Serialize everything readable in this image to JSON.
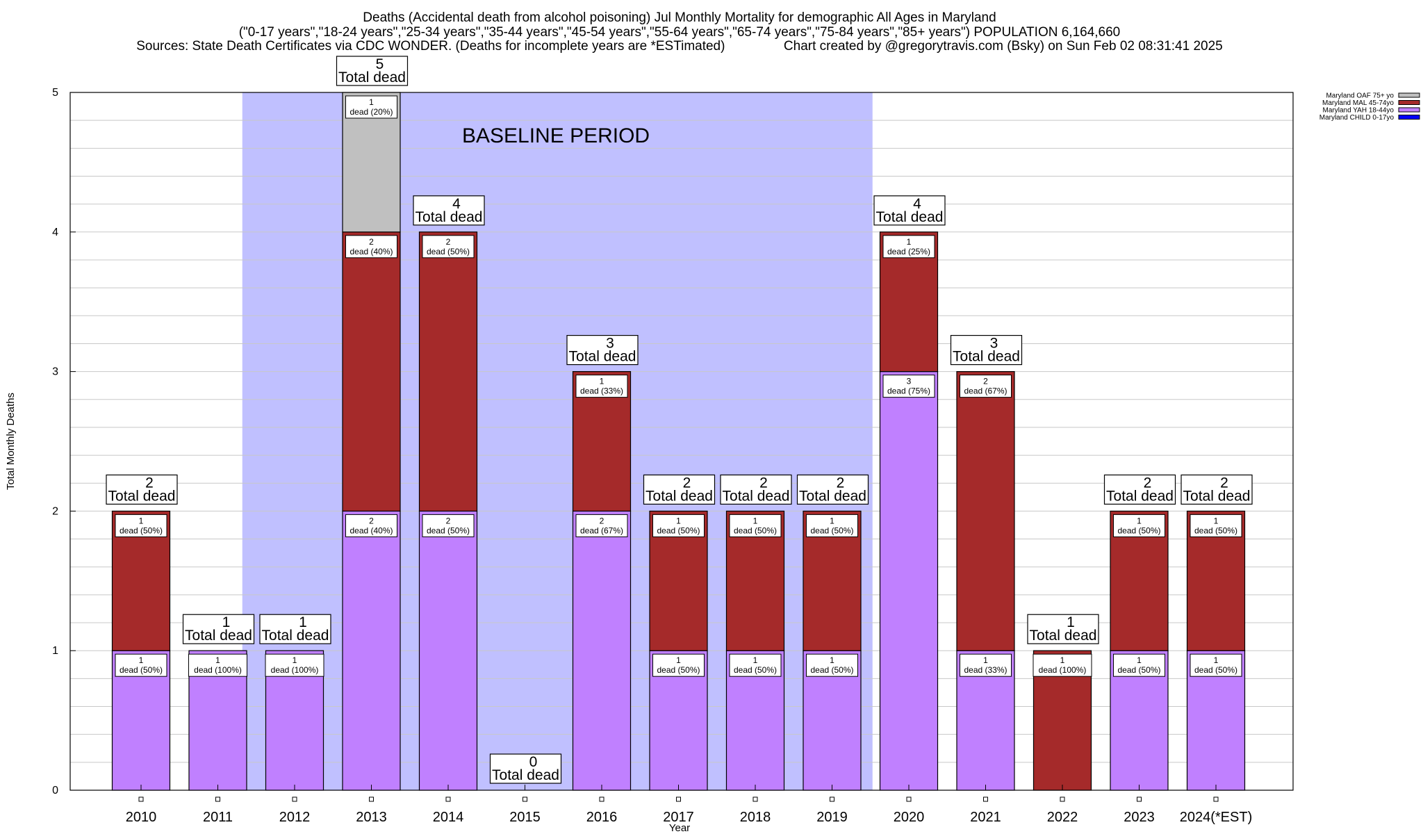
{
  "chart_data": {
    "type": "bar",
    "stacked": true,
    "title_lines": [
      "Deaths (Accidental death from alcohol poisoning) Jul Monthly Mortality for demographic All Ages in Maryland",
      "(\"0-17 years\",\"18-24 years\",\"25-34 years\",\"35-44 years\",\"45-54 years\",\"55-64 years\",\"65-74 years\",\"75-84 years\",\"85+ years\") POPULATION 6,164,660",
      "Sources: State Death Certificates via CDC WONDER. (Deaths for incomplete years are *ESTimated)                Chart created by @gregorytravis.com (Bsky) on Sun Feb 02 08:31:41 2025"
    ],
    "xlabel": "Year",
    "ylabel": "Total Monthly Deaths",
    "ylim": [
      0,
      5
    ],
    "yticks": [
      0,
      1,
      2,
      3,
      4,
      5
    ],
    "minor_grid_step": 0.2,
    "grid": true,
    "legend_position": "top-right",
    "categories": [
      "2010",
      "2011",
      "2012",
      "2013",
      "2014",
      "2015",
      "2016",
      "2017",
      "2018",
      "2019",
      "2020",
      "2021",
      "2022",
      "2023",
      "2024(*EST)"
    ],
    "series": [
      {
        "name": "Maryland CHILD 0-17yo",
        "color": "#0000ff",
        "values": [
          0,
          0,
          0,
          0,
          0,
          0,
          0,
          0,
          0,
          0,
          0,
          0,
          0,
          0,
          0
        ]
      },
      {
        "name": "Maryland YAH 18-44yo",
        "color": "#c080ff",
        "values": [
          1,
          1,
          1,
          2,
          2,
          0,
          2,
          1,
          1,
          1,
          3,
          1,
          0,
          1,
          1
        ]
      },
      {
        "name": "Maryland MAL 45-74yo",
        "color": "#a52a2a",
        "values": [
          1,
          0,
          0,
          2,
          2,
          0,
          1,
          1,
          1,
          1,
          1,
          2,
          1,
          1,
          1
        ]
      },
      {
        "name": "Maryland OAF 75+ yo",
        "color": "#c0c0c0",
        "values": [
          0,
          0,
          0,
          1,
          0,
          0,
          0,
          0,
          0,
          0,
          0,
          0,
          0,
          0,
          0
        ]
      }
    ],
    "legend_order": [
      "Maryland OAF 75+ yo",
      "Maryland MAL 45-74yo",
      "Maryland YAH 18-44yo",
      "Maryland CHILD 0-17yo"
    ],
    "totals": [
      2,
      1,
      1,
      5,
      4,
      0,
      3,
      2,
      2,
      2,
      4,
      3,
      1,
      2,
      2
    ],
    "total_label_suffix": "Total dead",
    "segment_labels": [
      [
        {
          "series": "Maryland YAH 18-44yo",
          "text": [
            "1",
            "dead (50%)"
          ]
        },
        {
          "series": "Maryland MAL 45-74yo",
          "text": [
            "1",
            "dead (50%)"
          ]
        }
      ],
      [
        {
          "series": "Maryland YAH 18-44yo",
          "text": [
            "1",
            "dead (100%)"
          ]
        }
      ],
      [
        {
          "series": "Maryland YAH 18-44yo",
          "text": [
            "1",
            "dead (100%)"
          ]
        }
      ],
      [
        {
          "series": "Maryland YAH 18-44yo",
          "text": [
            "2",
            "dead (40%)"
          ]
        },
        {
          "series": "Maryland MAL 45-74yo",
          "text": [
            "2",
            "dead (40%)"
          ]
        },
        {
          "series": "Maryland OAF 75+ yo",
          "text": [
            "1",
            "dead (20%)"
          ]
        }
      ],
      [
        {
          "series": "Maryland YAH 18-44yo",
          "text": [
            "2",
            "dead (50%)"
          ]
        },
        {
          "series": "Maryland MAL 45-74yo",
          "text": [
            "2",
            "dead (50%)"
          ]
        }
      ],
      [],
      [
        {
          "series": "Maryland YAH 18-44yo",
          "text": [
            "2",
            "dead (67%)"
          ]
        },
        {
          "series": "Maryland MAL 45-74yo",
          "text": [
            "1",
            "dead (33%)"
          ]
        }
      ],
      [
        {
          "series": "Maryland YAH 18-44yo",
          "text": [
            "1",
            "dead (50%)"
          ]
        },
        {
          "series": "Maryland MAL 45-74yo",
          "text": [
            "1",
            "dead (50%)"
          ]
        }
      ],
      [
        {
          "series": "Maryland YAH 18-44yo",
          "text": [
            "1",
            "dead (50%)"
          ]
        },
        {
          "series": "Maryland MAL 45-74yo",
          "text": [
            "1",
            "dead (50%)"
          ]
        }
      ],
      [
        {
          "series": "Maryland YAH 18-44yo",
          "text": [
            "1",
            "dead (50%)"
          ]
        },
        {
          "series": "Maryland MAL 45-74yo",
          "text": [
            "1",
            "dead (50%)"
          ]
        }
      ],
      [
        {
          "series": "Maryland YAH 18-44yo",
          "text": [
            "3",
            "dead (75%)"
          ]
        },
        {
          "series": "Maryland MAL 45-74yo",
          "text": [
            "1",
            "dead (25%)"
          ]
        }
      ],
      [
        {
          "series": "Maryland YAH 18-44yo",
          "text": [
            "1",
            "dead (33%)"
          ]
        },
        {
          "series": "Maryland MAL 45-74yo",
          "text": [
            "2",
            "dead (67%)"
          ]
        }
      ],
      [
        {
          "series": "Maryland MAL 45-74yo",
          "text": [
            "1",
            "dead (100%)"
          ]
        }
      ],
      [
        {
          "series": "Maryland YAH 18-44yo",
          "text": [
            "1",
            "dead (50%)"
          ]
        },
        {
          "series": "Maryland MAL 45-74yo",
          "text": [
            "1",
            "dead (50%)"
          ]
        }
      ],
      [
        {
          "series": "Maryland YAH 18-44yo",
          "text": [
            "1",
            "dead (50%)"
          ]
        },
        {
          "series": "Maryland MAL 45-74yo",
          "text": [
            "1",
            "dead (50%)"
          ]
        }
      ]
    ],
    "annotations": [
      {
        "text": "BASELINE PERIOD",
        "from_category": "2012",
        "to_category": "2019",
        "color": "#c0c0ff"
      }
    ]
  }
}
